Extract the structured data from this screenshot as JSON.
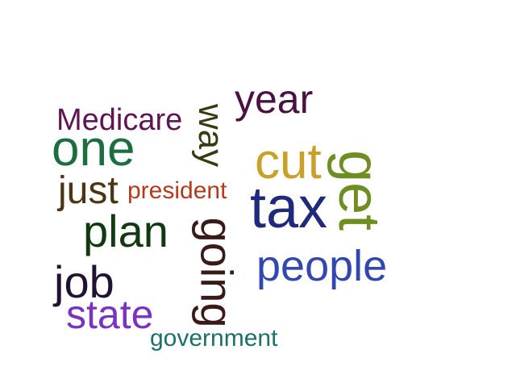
{
  "words": {
    "year": {
      "text": "year",
      "color": "#4a1243"
    },
    "medicare": {
      "text": "Medicare",
      "color": "#5e1650"
    },
    "way": {
      "text": "way",
      "color": "#3a3a12"
    },
    "one": {
      "text": "one",
      "color": "#1c6e40"
    },
    "cut": {
      "text": "cut",
      "color": "#c9a12a"
    },
    "get": {
      "text": "get",
      "color": "#6e8e22"
    },
    "just": {
      "text": "just",
      "color": "#4d3514"
    },
    "president": {
      "text": "president",
      "color": "#b43a1d"
    },
    "tax": {
      "text": "tax",
      "color": "#1f2a7a"
    },
    "plan": {
      "text": "plan",
      "color": "#123a12"
    },
    "going": {
      "text": "going",
      "color": "#3a1a18"
    },
    "people": {
      "text": "people",
      "color": "#3347b0"
    },
    "job": {
      "text": "job",
      "color": "#201230"
    },
    "state": {
      "text": "state",
      "color": "#7a32c0"
    },
    "government": {
      "text": "government",
      "color": "#1e6e6a"
    }
  }
}
